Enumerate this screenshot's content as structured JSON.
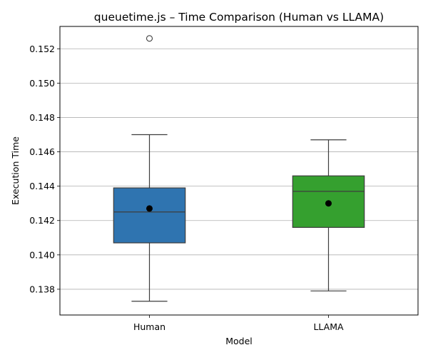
{
  "chart_data": {
    "type": "box",
    "title": "queuetime.js – Time Comparison (Human vs LLAMA)",
    "xlabel": "Model",
    "ylabel": "Execution Time",
    "categories": [
      "Human",
      "LLAMA"
    ],
    "ylim": [
      0.1365,
      0.1533
    ],
    "yticks": [
      0.138,
      0.14,
      0.142,
      0.144,
      0.146,
      0.148,
      0.15,
      0.152
    ],
    "ytick_labels": [
      "0.138",
      "0.140",
      "0.142",
      "0.144",
      "0.146",
      "0.148",
      "0.150",
      "0.152"
    ],
    "grid": "y",
    "boxes": [
      {
        "category": "Human",
        "color": "#2f74b0",
        "whisker_low": 0.1373,
        "q1": 0.1407,
        "median": 0.1425,
        "q3": 0.1439,
        "whisker_high": 0.147,
        "mean": 0.1427,
        "outliers": [
          0.1526
        ]
      },
      {
        "category": "LLAMA",
        "color": "#35a02f",
        "whisker_low": 0.1379,
        "q1": 0.1416,
        "median": 0.1437,
        "q3": 0.1446,
        "whisker_high": 0.1467,
        "mean": 0.143,
        "outliers": []
      }
    ]
  }
}
